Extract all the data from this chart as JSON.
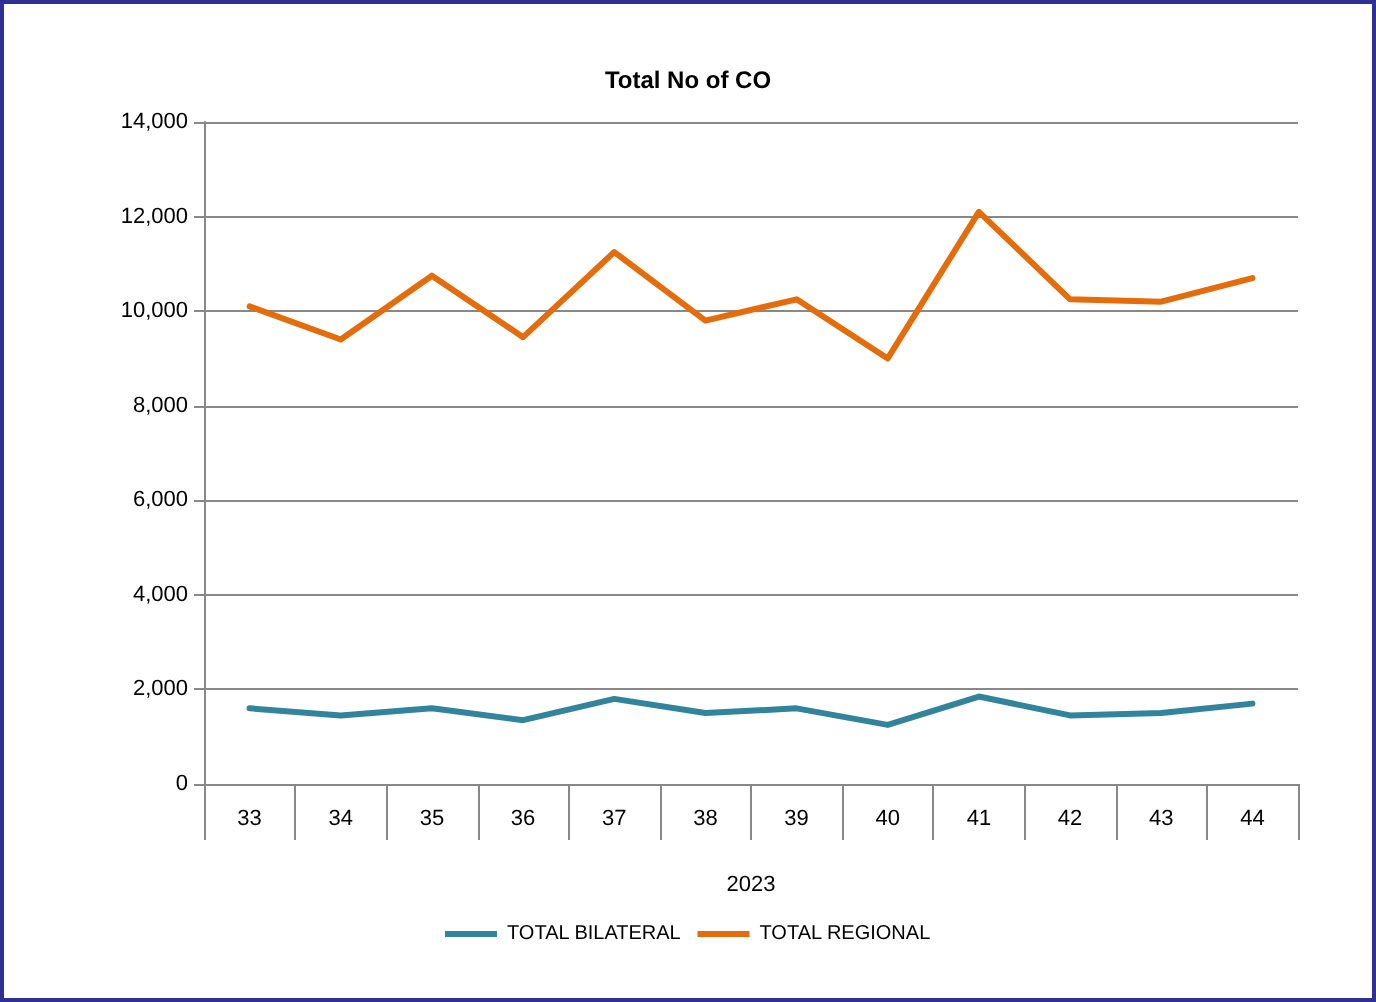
{
  "chart_data": {
    "type": "line",
    "title": "Total No of CO",
    "xlabel": "2023",
    "categories": [
      "33",
      "34",
      "35",
      "36",
      "37",
      "38",
      "39",
      "40",
      "41",
      "42",
      "43",
      "44"
    ],
    "series": [
      {
        "name": "TOTAL BILATERAL",
        "color": "#31849b",
        "values": [
          1600,
          1450,
          1600,
          1350,
          1800,
          1500,
          1600,
          1250,
          1850,
          1450,
          1500,
          1700
        ]
      },
      {
        "name": "TOTAL REGIONAL",
        "color": "#e46c0a",
        "values": [
          10100,
          9400,
          10750,
          9450,
          11250,
          9800,
          10250,
          9000,
          12100,
          10250,
          10200,
          10700
        ]
      }
    ],
    "ylim": [
      0,
      14000
    ],
    "yticks": [
      0,
      {
        "value": 2000,
        "label": "2,000"
      },
      {
        "value": 4000,
        "label": "4,000"
      },
      {
        "value": 6000,
        "label": "6,000"
      },
      {
        "value": 8000,
        "label": "8,000"
      },
      {
        "value": 10000,
        "label": "10,000"
      },
      {
        "value": 12000,
        "label": "12,000"
      },
      {
        "value": 14000,
        "label": "14,000"
      }
    ],
    "grid": "y",
    "legend": "bottom",
    "marker": "none",
    "line_style": "solid"
  }
}
